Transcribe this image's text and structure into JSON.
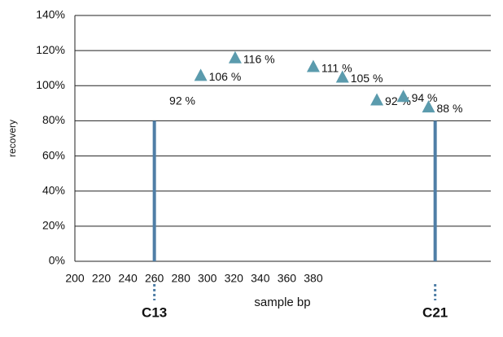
{
  "chart_data": {
    "type": "scatter",
    "x": [
      295,
      321,
      380,
      402,
      428,
      448,
      467
    ],
    "values": [
      106,
      116,
      111,
      105,
      92,
      94,
      88
    ],
    "value_labels": [
      "106 %",
      "116 %",
      "111 %",
      "105 %",
      "92 %",
      "94 %",
      "88 %"
    ],
    "color": "#5b9bad",
    "xlabel": "sample bp",
    "ylabel": "recovery",
    "xlim": [
      200,
      514
    ],
    "xticks": [
      200,
      220,
      240,
      260,
      280,
      300,
      320,
      340,
      360,
      380
    ],
    "ylim": [
      0,
      140
    ],
    "yticks": [
      {
        "value": 0,
        "label": "0%"
      },
      {
        "value": 20,
        "label": "20%"
      },
      {
        "value": 40,
        "label": "40%"
      },
      {
        "value": 60,
        "label": "60%"
      },
      {
        "value": 80,
        "label": "80%"
      },
      {
        "value": 100,
        "label": "100%"
      },
      {
        "value": 120,
        "label": "120%"
      },
      {
        "value": 140,
        "label": "140%"
      }
    ],
    "grid": true,
    "markers": [
      {
        "label": "C13",
        "x": 260,
        "y": 80,
        "color": "#4f7ea6"
      },
      {
        "label": "C21",
        "x": 472,
        "y": 80,
        "color": "#4f7ea6"
      }
    ],
    "annotations": [
      "92 %"
    ]
  }
}
